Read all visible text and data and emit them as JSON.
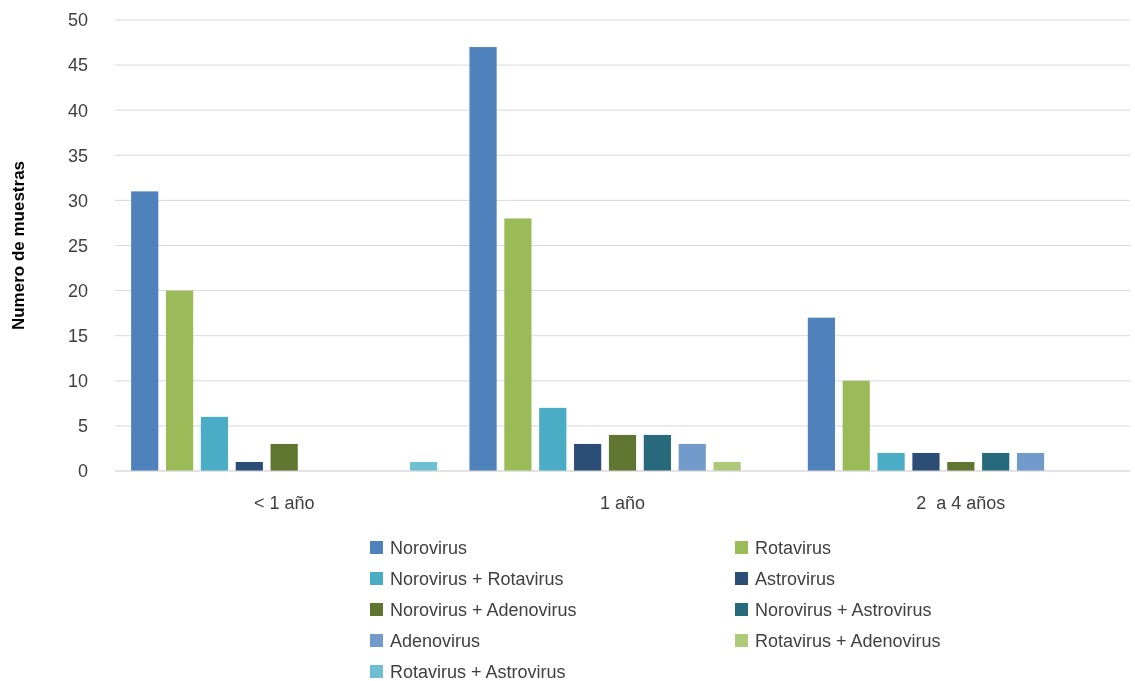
{
  "chart_data": {
    "type": "bar",
    "ylabel": "Numero de muestras",
    "categories": [
      "< 1 año",
      "1 año",
      "2  a 4 años"
    ],
    "series": [
      {
        "name": "Norovirus",
        "color": "#4f81bd",
        "values": [
          31,
          47,
          17
        ]
      },
      {
        "name": "Rotavirus",
        "color": "#9bbb59",
        "values": [
          20,
          28,
          10
        ]
      },
      {
        "name": "Norovirus + Rotavirus",
        "color": "#4bacc6",
        "values": [
          6,
          7,
          2
        ]
      },
      {
        "name": "Astrovirus",
        "color": "#2c4d75",
        "values": [
          1,
          3,
          2
        ]
      },
      {
        "name": "Norovirus + Adenovirus",
        "color": "#5f7530",
        "values": [
          3,
          4,
          1
        ]
      },
      {
        "name": "Norovirus + Astrovirus",
        "color": "#276a7c",
        "values": [
          null,
          4,
          2
        ]
      },
      {
        "name": "Adenovirus",
        "color": "#729aca",
        "values": [
          null,
          3,
          2
        ]
      },
      {
        "name": "Rotavirus + Adenovirus",
        "color": "#afc97a",
        "values": [
          null,
          1,
          null
        ]
      },
      {
        "name": "Rotavirus + Astrovirus",
        "color": "#6fbfd3",
        "values": [
          1,
          null,
          null
        ]
      }
    ],
    "ylim": [
      0,
      50
    ],
    "yticks": [
      0,
      5,
      10,
      15,
      20,
      25,
      30,
      35,
      40,
      45,
      50
    ],
    "grid": "y",
    "legend": "bottom"
  }
}
